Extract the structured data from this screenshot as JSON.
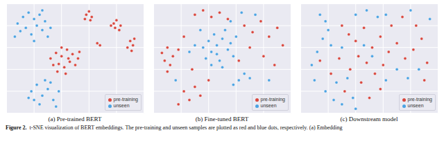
{
  "chart_data": [
    {
      "type": "scatter",
      "title": "(a) Pre-trained BERT",
      "xlim": [
        0,
        100
      ],
      "ylim": [
        0,
        100
      ],
      "xticks": [
        0,
        20,
        40,
        60,
        80,
        100
      ],
      "yticks": [
        0,
        20,
        40,
        60,
        80,
        100
      ],
      "grid": true,
      "tick_labels": false,
      "legend": "lower right",
      "series": [
        {
          "name": "pre-training",
          "color": "#d9473e",
          "marker": "circle",
          "x": [
            58,
            60,
            62,
            57,
            61,
            78,
            80,
            83,
            79,
            82,
            76,
            90,
            92,
            88,
            93,
            91,
            66,
            68,
            32,
            36,
            40,
            44,
            48,
            52,
            38,
            42,
            46,
            50,
            34,
            40,
            45,
            53,
            37,
            43
          ],
          "y": [
            90,
            93,
            88,
            86,
            85,
            82,
            85,
            80,
            78,
            76,
            80,
            66,
            62,
            60,
            68,
            57,
            64,
            62,
            50,
            55,
            52,
            58,
            54,
            50,
            45,
            42,
            47,
            44,
            44,
            60,
            50,
            56,
            38,
            36
          ]
        },
        {
          "name": "unseen",
          "color": "#4ba3e3",
          "marker": "circle",
          "x": [
            8,
            12,
            16,
            20,
            24,
            28,
            10,
            14,
            18,
            22,
            26,
            30,
            32,
            6,
            20,
            26,
            18,
            22,
            26,
            30,
            34,
            38,
            24,
            28,
            20,
            32,
            36,
            16
          ],
          "y": [
            82,
            88,
            92,
            86,
            90,
            84,
            75,
            78,
            72,
            80,
            76,
            70,
            78,
            70,
            66,
            94,
            20,
            26,
            16,
            22,
            12,
            20,
            8,
            30,
            12,
            28,
            6,
            14
          ]
        }
      ]
    },
    {
      "type": "scatter",
      "title": "(b) Fine-tuned BERT",
      "xlim": [
        0,
        100
      ],
      "ylim": [
        0,
        100
      ],
      "xticks": [
        0,
        20,
        40,
        60,
        80,
        100
      ],
      "yticks": [
        0,
        20,
        40,
        60,
        80,
        100
      ],
      "grid": true,
      "tick_labels": false,
      "legend": "lower right",
      "series": [
        {
          "name": "pre-training",
          "color": "#d9473e",
          "marker": "circle",
          "x": [
            6,
            8,
            10,
            12,
            14,
            18,
            10,
            30,
            36,
            42,
            48,
            54,
            22,
            26,
            30,
            18,
            34,
            66,
            72,
            78,
            84,
            90,
            94,
            70,
            80,
            88,
            62,
            40,
            28,
            22
          ],
          "y": [
            55,
            48,
            60,
            44,
            52,
            58,
            38,
            90,
            94,
            88,
            92,
            86,
            20,
            12,
            24,
            8,
            16,
            80,
            74,
            84,
            70,
            78,
            62,
            60,
            52,
            44,
            48,
            30,
            40,
            70
          ]
        },
        {
          "name": "unseen",
          "color": "#4ba3e3",
          "marker": "circle",
          "x": [
            38,
            42,
            46,
            50,
            54,
            58,
            40,
            44,
            48,
            52,
            56,
            36,
            60,
            46,
            50,
            42,
            62,
            66,
            58,
            70,
            26,
            30,
            64,
            74,
            16,
            84,
            56,
            34
          ],
          "y": [
            50,
            56,
            62,
            68,
            58,
            52,
            66,
            72,
            48,
            76,
            64,
            60,
            70,
            54,
            42,
            44,
            30,
            36,
            26,
            32,
            56,
            62,
            92,
            90,
            30,
            30,
            84,
            76
          ]
        }
      ]
    },
    {
      "type": "scatter",
      "title": "(c) Downstream model",
      "xlim": [
        0,
        100
      ],
      "ylim": [
        0,
        100
      ],
      "xticks": [
        0,
        20,
        40,
        60,
        80,
        100
      ],
      "yticks": [
        0,
        20,
        40,
        60,
        80,
        100
      ],
      "grid": true,
      "tick_labels": false,
      "legend": "lower right",
      "series": [
        {
          "name": "pre-training",
          "color": "#d9473e",
          "marker": "circle",
          "x": [
            30,
            35,
            40,
            46,
            52,
            58,
            64,
            70,
            76,
            82,
            88,
            60,
            54,
            48,
            42,
            36,
            28,
            22,
            66,
            74,
            84,
            92,
            44,
            32,
            50,
            58,
            14,
            90
          ],
          "y": [
            80,
            72,
            66,
            78,
            60,
            70,
            56,
            64,
            50,
            58,
            68,
            44,
            36,
            46,
            52,
            40,
            50,
            36,
            80,
            88,
            80,
            46,
            28,
            20,
            14,
            22,
            48,
            30
          ]
        },
        {
          "name": "unseen",
          "color": "#4ba3e3",
          "marker": "circle",
          "x": [
            14,
            18,
            20,
            16,
            22,
            12,
            8,
            10,
            18,
            24,
            30,
            38,
            26,
            34,
            40,
            48,
            56,
            62,
            80,
            94,
            70,
            78,
            86,
            62,
            52,
            46,
            30,
            40
          ],
          "y": [
            90,
            84,
            76,
            68,
            62,
            56,
            44,
            30,
            20,
            12,
            8,
            14,
            28,
            32,
            90,
            94,
            88,
            90,
            94,
            86,
            40,
            32,
            40,
            30,
            52,
            62,
            60,
            4
          ]
        }
      ]
    }
  ],
  "caption_label": "Figure 2.",
  "caption": "t-SNE visualization of BERT embeddings. The pre-training and unseen samples are plotted as red and blue dots, respectively. (a) Embedding"
}
